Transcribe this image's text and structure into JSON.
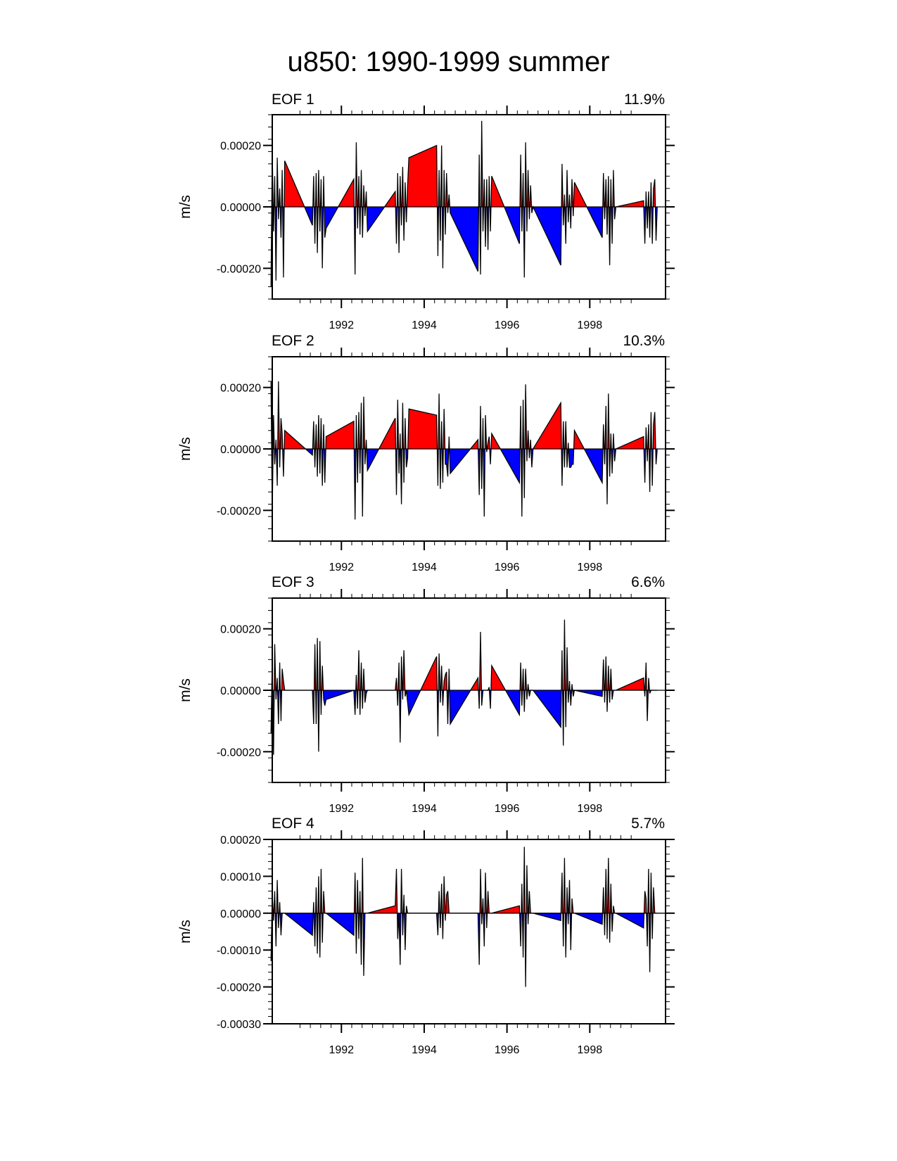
{
  "title": "u850: 1990-1999 summer",
  "colors": {
    "positive": "#ff0000",
    "negative": "#0000ff",
    "line": "#000000"
  },
  "chart_data": [
    {
      "type": "area",
      "name": "EOF 1",
      "variance": "11.9%",
      "ylabel": "m/s",
      "ylim": [
        -0.0003,
        0.0003
      ],
      "yticks": [
        -0.0002,
        0.0,
        0.0002
      ],
      "ytick_labels": [
        "-0.00020",
        "0.00000",
        "0.00020"
      ],
      "xlim": [
        1990.33,
        1999.83
      ],
      "xticks": [
        1992,
        1994,
        1996,
        1998
      ],
      "xtick_labels": [
        "1992",
        "1994",
        "1996",
        "1998"
      ],
      "series": [
        {
          "year": 1990,
          "values": [
            -0.00026,
            0.00018,
            -8e-05,
            0.0001,
            -0.00024,
            0.00016,
            -4e-05,
            6e-05,
            -0.0001,
            0.00012,
            -0.00023,
            0.00015
          ]
        },
        {
          "year": 1991,
          "values": [
            -6e-05,
            0.0001,
            -0.00012,
            0.00011,
            -0.00015,
            0.00012,
            -8e-05,
            9e-05,
            -0.0002,
            0.0001,
            -0.0001,
            -7e-05
          ]
        },
        {
          "year": 1992,
          "values": [
            9e-05,
            -0.00022,
            0.00021,
            -7e-05,
            0.0001,
            -9e-05,
            0.00012,
            -0.0001,
            7e-05,
            -3e-05,
            5e-05,
            -8e-05
          ]
        },
        {
          "year": 1993,
          "values": [
            5e-05,
            -0.00012,
            0.00011,
            -0.00015,
            0.0001,
            -6e-05,
            0.00013,
            -0.00011,
            8e-05,
            -5e-05,
            7e-05,
            0.00016
          ]
        },
        {
          "year": 1994,
          "values": [
            0.0002,
            -0.00016,
            0.00012,
            -0.00011,
            0.0002,
            -0.0002,
            0.00012,
            -9e-05,
            0.00011,
            -2e-05,
            4e-05,
            -2e-05
          ]
        },
        {
          "year": 1995,
          "values": [
            -0.00021,
            0.00017,
            -0.00022,
            0.00028,
            -8e-05,
            9e-05,
            -0.00013,
            9e-05,
            -0.00014,
            0.0001,
            -8e-05,
            0.0001
          ]
        },
        {
          "year": 1996,
          "values": [
            -0.00012,
            0.00017,
            -8e-05,
            0.00011,
            -0.00023,
            0.00021,
            -8e-05,
            0.00012,
            -4e-05,
            7e-05,
            -2e-05,
            0.0
          ]
        },
        {
          "year": 1997,
          "values": [
            -0.00019,
            0.00014,
            -6e-05,
            4e-05,
            -0.00012,
            0.00012,
            -5e-05,
            4e-05,
            -7e-05,
            9e-05,
            -3e-05,
            8e-05
          ]
        },
        {
          "year": 1998,
          "values": [
            -0.0001,
            0.00011,
            -4e-05,
            9e-05,
            -9e-05,
            0.0001,
            -0.00019,
            9e-05,
            -0.00012,
            0.00012,
            -4e-05,
            0.0
          ]
        },
        {
          "year": 1999,
          "values": [
            2e-05,
            -0.00012,
            5e-05,
            -7e-05,
            5e-05,
            -0.0001,
            8e-05,
            -0.00012,
            6e-05,
            9e-05,
            -0.00011,
            0.0
          ]
        }
      ]
    },
    {
      "type": "area",
      "name": "EOF 2",
      "variance": "10.3%",
      "ylabel": "m/s",
      "ylim": [
        -0.0003,
        0.0003
      ],
      "yticks": [
        -0.0002,
        0.0,
        0.0002
      ],
      "ytick_labels": [
        "-0.00020",
        "0.00000",
        "0.00020"
      ],
      "xlim": [
        1990.33,
        1999.83
      ],
      "xticks": [
        1992,
        1994,
        1996,
        1998
      ],
      "xtick_labels": [
        "1992",
        "1994",
        "1996",
        "1998"
      ],
      "series": [
        {
          "year": 1990,
          "values": [
            0.00022,
            -0.00021,
            0.00011,
            -5e-05,
            3e-05,
            -0.00012,
            0.00022,
            -6e-05,
            0.0001,
            5e-05,
            -9e-05,
            6e-05
          ]
        },
        {
          "year": 1991,
          "values": [
            -2e-05,
            9e-05,
            -6e-05,
            8e-05,
            -9e-05,
            0.00011,
            -8e-05,
            0.0001,
            -0.00012,
            8e-05,
            -0.00011,
            4e-05
          ]
        },
        {
          "year": 1992,
          "values": [
            9e-05,
            -0.00023,
            0.00011,
            -0.00011,
            0.00012,
            -8e-05,
            0.00015,
            -0.00022,
            0.00017,
            -5e-05,
            3e-05,
            -7e-05
          ]
        },
        {
          "year": 1993,
          "values": [
            0.0001,
            -0.00015,
            0.00016,
            -8e-05,
            5e-05,
            -0.00018,
            0.00015,
            -0.00011,
            0.0001,
            -6e-05,
            -3e-05,
            0.00013
          ]
        },
        {
          "year": 1994,
          "values": [
            0.00011,
            -0.00012,
            0.00018,
            -0.00013,
            9e-05,
            -0.00011,
            0.00013,
            -5e-05,
            -5e-05,
            -9e-05,
            4e-05,
            -8e-05
          ]
        },
        {
          "year": 1995,
          "values": [
            3e-05,
            -0.00015,
            0.00014,
            -0.00013,
            0.0001,
            -0.00022,
            0.00011,
            -1e-05,
            2e-05,
            4e-05,
            -5e-05,
            5e-05
          ]
        },
        {
          "year": 1996,
          "values": [
            -0.00011,
            0.00014,
            -0.00022,
            0.00016,
            -0.00016,
            0.00021,
            -4e-05,
            6e-05,
            -3e-05,
            3e-05,
            -6e-05,
            0.0
          ]
        },
        {
          "year": 1997,
          "values": [
            0.00015,
            -0.00012,
            9e-05,
            -6e-05,
            9e-05,
            -6e-05,
            2e-05,
            -6e-05,
            -6e-05,
            -5e-05,
            -5e-05,
            6e-05
          ]
        },
        {
          "year": 1998,
          "values": [
            -0.00011,
            8e-05,
            -5e-05,
            0.00014,
            -0.00018,
            0.00018,
            -9e-05,
            5e-05,
            -8e-05,
            5e-05,
            -4e-05,
            0.0
          ]
        },
        {
          "year": 1999,
          "values": [
            4e-05,
            -0.00011,
            7e-05,
            -4e-05,
            8e-05,
            -0.00014,
            0.00012,
            -0.00012,
            8e-05,
            0.00012,
            -5e-05,
            0.0
          ]
        }
      ]
    },
    {
      "type": "area",
      "name": "EOF 3",
      "variance": "6.6%",
      "ylabel": "m/s",
      "ylim": [
        -0.0003,
        0.0003
      ],
      "yticks": [
        -0.0002,
        0.0,
        0.0002
      ],
      "ytick_labels": [
        "-0.00020",
        "0.00000",
        "0.00020"
      ],
      "xlim": [
        1990.33,
        1999.83
      ],
      "xticks": [
        1992,
        1994,
        1996,
        1998
      ],
      "xtick_labels": [
        "1992",
        "1994",
        "1996",
        "1998"
      ],
      "series": [
        {
          "year": 1990,
          "values": [
            -0.00014,
            0.0001,
            -0.00021,
            0.00015,
            -3e-05,
            4e-05,
            -0.00011,
            9e-05,
            -0.0001,
            7e-05,
            3e-05,
            0.0
          ]
        },
        {
          "year": 1991,
          "values": [
            0.0,
            -0.00011,
            0.00015,
            -0.00011,
            0.00017,
            -0.0002,
            0.00016,
            -8e-05,
            8e-05,
            -3e-05,
            -5e-05,
            -3e-05
          ]
        },
        {
          "year": 1992,
          "values": [
            0.0,
            -8e-05,
            5e-05,
            -6e-05,
            0.00013,
            -8e-05,
            9e-05,
            -6e-05,
            7e-05,
            -4e-05,
            -1e-05,
            0.0
          ]
        },
        {
          "year": 1993,
          "values": [
            0.0,
            4e-05,
            -5e-05,
            9e-05,
            -0.00017,
            0.00011,
            -3e-05,
            0.00013,
            -2e-05,
            0.0,
            -4e-05,
            -8e-05
          ]
        },
        {
          "year": 1994,
          "values": [
            0.00011,
            -0.00015,
            0.00012,
            -4e-05,
            8e-05,
            -5e-05,
            3e-05,
            5e-05,
            6e-05,
            -0.00011,
            7e-05,
            -0.00011
          ]
        },
        {
          "year": 1995,
          "values": [
            4e-05,
            -6e-05,
            0.00019,
            -5e-05,
            0.0,
            0.0,
            0.0,
            0.0,
            0.0,
            1e-05,
            -6e-05,
            8e-05
          ]
        },
        {
          "year": 1996,
          "values": [
            -8e-05,
            9e-05,
            -5e-05,
            7e-05,
            -7e-05,
            7e-05,
            -3e-05,
            2e-05,
            -2e-05,
            0.0,
            0.0,
            0.0
          ]
        },
        {
          "year": 1997,
          "values": [
            -0.00012,
            0.00013,
            -0.00018,
            0.00023,
            -0.00012,
            0.00014,
            -4e-05,
            3e-05,
            -5e-05,
            2e-05,
            -2e-05,
            0.0
          ]
        },
        {
          "year": 1998,
          "values": [
            -2e-05,
            0.0001,
            -4e-05,
            0.00011,
            -7e-05,
            8e-05,
            -4e-05,
            7e-05,
            -3e-05,
            0.0,
            0.0,
            0.0
          ]
        },
        {
          "year": 1999,
          "values": [
            4e-05,
            -2e-05,
            9e-05,
            -0.0001,
            4e-05,
            -1e-05,
            0.0,
            0.0,
            0.0,
            0.0,
            0.0,
            0.0
          ]
        }
      ]
    },
    {
      "type": "area",
      "name": "EOF 4",
      "variance": "5.7%",
      "ylabel": "m/s",
      "ylim": [
        -0.0003,
        0.0002
      ],
      "yticks": [
        -0.0003,
        -0.0002,
        -0.0001,
        0.0,
        0.0001,
        0.0002
      ],
      "ytick_labels": [
        "-0.00030",
        "-0.00020",
        "-0.00010",
        "0.00000",
        "0.00010",
        "0.00020"
      ],
      "xlim": [
        1990.33,
        1999.83
      ],
      "xticks": [
        1992,
        1994,
        1996,
        1998
      ],
      "xtick_labels": [
        "1992",
        "1994",
        "1996",
        "1998"
      ],
      "series": [
        {
          "year": 1990,
          "values": [
            -0.00013,
            5e-05,
            -2e-05,
            6e-05,
            -9e-05,
            9e-05,
            -4e-05,
            3e-05,
            -6e-05,
            0.0,
            0.0,
            0.0
          ]
        },
        {
          "year": 1991,
          "values": [
            -6e-05,
            3e-05,
            -9e-05,
            7e-05,
            -0.00011,
            0.0001,
            -0.00012,
            0.00012,
            -8e-05,
            6e-05,
            0.0,
            0.0
          ]
        },
        {
          "year": 1992,
          "values": [
            -6e-05,
            0.00011,
            -0.00011,
            9e-05,
            -7e-05,
            6e-05,
            -0.00014,
            0.00015,
            -0.00017,
            0.0,
            0.0,
            0.0
          ]
        },
        {
          "year": 1993,
          "values": [
            2e-05,
            0.00012,
            -7e-05,
            0.0,
            -0.00014,
            0.00012,
            -6e-05,
            5e-05,
            -0.0001,
            2e-05,
            0.0,
            0.0
          ]
        },
        {
          "year": 1994,
          "values": [
            0.0,
            -6e-05,
            6e-05,
            -4e-05,
            8e-05,
            -7e-05,
            0.0001,
            -2e-05,
            5e-05,
            6e-05,
            0.0,
            0.0
          ]
        },
        {
          "year": 1995,
          "values": [
            0.0,
            -0.00014,
            0.00012,
            -3e-05,
            4e-05,
            -9e-05,
            0.00011,
            -4e-05,
            6e-05,
            0.0,
            0.0,
            0.0
          ]
        },
        {
          "year": 1996,
          "values": [
            2e-05,
            -9e-05,
            8e-05,
            -0.00012,
            0.00018,
            -0.0002,
            0.00013,
            -3e-05,
            6e-05,
            0.0,
            0.0,
            0.0
          ]
        },
        {
          "year": 1997,
          "values": [
            -2e-05,
            0.00011,
            -9e-05,
            0.00015,
            -0.00012,
            7e-05,
            -3e-05,
            9e-05,
            -0.0001,
            4e-05,
            0.0,
            0.0
          ]
        },
        {
          "year": 1998,
          "values": [
            -3e-05,
            7e-05,
            -6e-05,
            0.00012,
            -7e-05,
            0.00015,
            -8e-05,
            8e-05,
            -5e-05,
            2e-05,
            0.0,
            0.0
          ]
        },
        {
          "year": 1999,
          "values": [
            -4e-05,
            6e-05,
            4e-05,
            -9e-05,
            0.00012,
            -0.00016,
            0.00011,
            -7e-05,
            7e-05,
            0.0,
            0.0,
            0.0
          ]
        }
      ]
    }
  ]
}
